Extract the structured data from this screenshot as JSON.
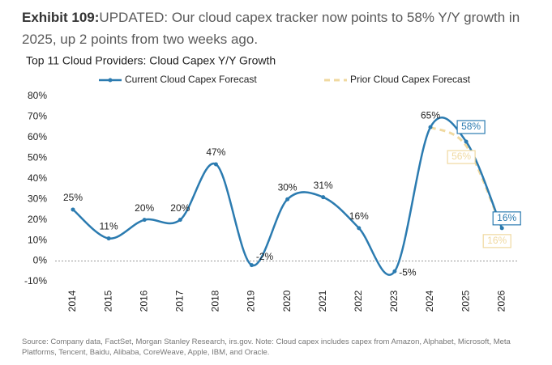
{
  "header": {
    "exhibit": "Exhibit 109:",
    "headline": "UPDATED: Our cloud capex tracker now points to 58% Y/Y growth in 2025, up 2 points from two weeks ago."
  },
  "chart_data": {
    "type": "line",
    "title": "Top 11 Cloud Providers: Cloud Capex Y/Y Growth",
    "categories": [
      "2014",
      "2015",
      "2016",
      "2017",
      "2018",
      "2019",
      "2020",
      "2021",
      "2022",
      "2023",
      "2024",
      "2025",
      "2026"
    ],
    "series": [
      {
        "name": "Current Cloud Capex Forecast",
        "color": "#2b7bb0",
        "values": [
          25,
          11,
          20,
          20,
          47,
          -2,
          30,
          31,
          16,
          -5,
          65,
          58,
          16
        ],
        "value_labels": [
          "25%",
          "11%",
          "20%",
          "20%",
          "47%",
          "-2%",
          "30%",
          "31%",
          "16%",
          "-5%",
          "65%",
          "58%",
          "16%"
        ]
      },
      {
        "name": "Prior Cloud Capex Forecast",
        "color": "#f0d9a0",
        "values": [
          null,
          null,
          null,
          null,
          null,
          null,
          null,
          null,
          null,
          null,
          65,
          56,
          16
        ],
        "value_labels": [
          null,
          null,
          null,
          null,
          null,
          null,
          null,
          null,
          null,
          null,
          null,
          "56%",
          "16%"
        ]
      }
    ],
    "ylim": [
      -10,
      80
    ],
    "yticks": [
      {
        "value": -10,
        "label": "-10%"
      },
      {
        "value": 0,
        "label": "0%"
      },
      {
        "value": 10,
        "label": "10%"
      },
      {
        "value": 20,
        "label": "20%"
      },
      {
        "value": 30,
        "label": "30%"
      },
      {
        "value": 40,
        "label": "40%"
      },
      {
        "value": 50,
        "label": "50%"
      },
      {
        "value": 60,
        "label": "60%"
      },
      {
        "value": 70,
        "label": "70%"
      },
      {
        "value": 80,
        "label": "80%"
      }
    ],
    "zero_line": true
  },
  "footer": {
    "source": "Source: Company data, FactSet, Morgan Stanley Research, irs.gov. Note: Cloud capex includes capex from Amazon, Alphabet, Microsoft, Meta Platforms, Tencent, Baidu, Alibaba, CoreWeave, Apple, IBM, and Oracle."
  }
}
